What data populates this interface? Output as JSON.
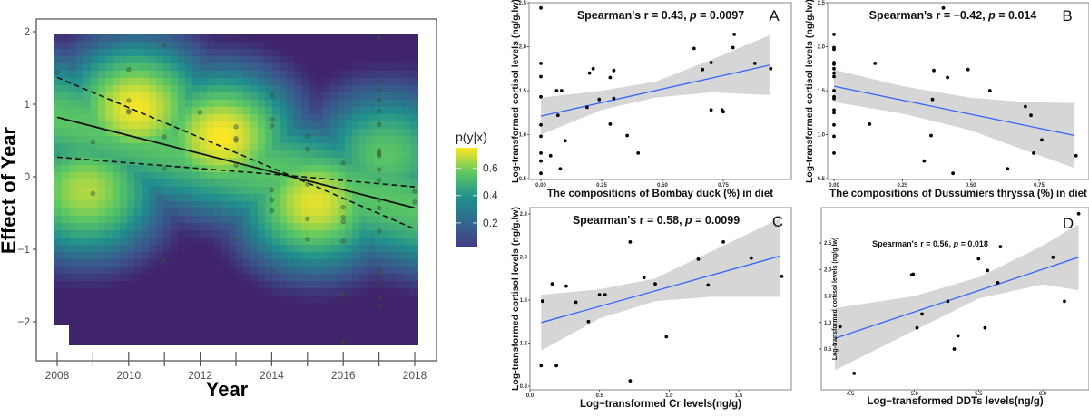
{
  "chart_data": [
    {
      "id": "effect-of-year",
      "type": "heatmap",
      "title": "",
      "xlabel": "Year",
      "ylabel": "Effect of Year",
      "xlim": [
        2007.8,
        2018.3
      ],
      "ylim": [
        -2.5,
        2.05
      ],
      "xticks": [
        2008,
        2010,
        2012,
        2014,
        2016,
        2018
      ],
      "xtick_labels": [
        "2008",
        "2010",
        "2012",
        "2014",
        "2016",
        "2018"
      ],
      "minor_xticks": [
        2009,
        2011,
        2013,
        2015,
        2017
      ],
      "yticks": [
        -2,
        -1,
        0,
        1,
        2
      ],
      "ytick_labels": [
        "−2",
        "−1",
        "0",
        "1",
        "2"
      ],
      "legend": {
        "title": "p(y|x)",
        "ticks": [
          0.2,
          0.4,
          0.6
        ],
        "tick_labels": [
          "0.2",
          "0.4",
          "0.6"
        ],
        "range": [
          0.02,
          0.75
        ],
        "position": "right"
      },
      "colormap": [
        "#440154",
        "#3b528b",
        "#21908d",
        "#5dc863",
        "#fde725"
      ],
      "heat_peaks": [
        {
          "x": 2010.2,
          "y": 0.95,
          "w": 0.74
        },
        {
          "x": 2012.6,
          "y": 0.55,
          "w": 0.75
        },
        {
          "x": 2015.2,
          "y": -0.35,
          "w": 0.72
        },
        {
          "x": 2008.8,
          "y": -0.2,
          "w": 0.66
        },
        {
          "x": 2017.2,
          "y": 0.3,
          "w": 0.55
        }
      ],
      "fit_line": {
        "x": [
          2008,
          2018
        ],
        "y": [
          0.82,
          -0.43
        ]
      },
      "ci_upper": {
        "x": [
          2008,
          2014.6,
          2018
        ],
        "y": [
          1.37,
          0.0,
          -0.72
        ]
      },
      "ci_lower": {
        "x": [
          2008,
          2014.4,
          2018
        ],
        "y": [
          0.27,
          0.02,
          -0.14
        ]
      },
      "points": [
        [
          2008,
          1.44
        ],
        [
          2009,
          0.48
        ],
        [
          2009,
          -0.23
        ],
        [
          2010,
          1.48
        ],
        [
          2010,
          1.05
        ],
        [
          2010,
          0.91
        ],
        [
          2010,
          0.89
        ],
        [
          2011,
          1.82
        ],
        [
          2011,
          0.55
        ],
        [
          2011,
          0.11
        ],
        [
          2011,
          -1.16
        ],
        [
          2012,
          0.89
        ],
        [
          2013,
          0.69
        ],
        [
          2013,
          0.53
        ],
        [
          2013,
          0.5
        ],
        [
          2013,
          0.16
        ],
        [
          2013,
          -0.86
        ],
        [
          2014,
          1.12
        ],
        [
          2014,
          0.79
        ],
        [
          2014,
          0.7
        ],
        [
          2014,
          -0.18
        ],
        [
          2014,
          -0.32
        ],
        [
          2014,
          -0.47
        ],
        [
          2014,
          -1.3
        ],
        [
          2015,
          0.56
        ],
        [
          2015,
          0.38
        ],
        [
          2015,
          -0.1
        ],
        [
          2015,
          -0.58
        ],
        [
          2015,
          -0.86
        ],
        [
          2016,
          0.19
        ],
        [
          2016,
          -0.42
        ],
        [
          2016,
          -0.56
        ],
        [
          2016,
          -0.62
        ],
        [
          2016,
          -0.89
        ],
        [
          2016,
          -1.63
        ],
        [
          2016,
          -2.28
        ],
        [
          2017,
          1.92
        ],
        [
          2017,
          1.31
        ],
        [
          2017,
          1.19
        ],
        [
          2017,
          1.05
        ],
        [
          2017,
          0.91
        ],
        [
          2017,
          0.72
        ],
        [
          2017,
          0.36
        ],
        [
          2017,
          0.32
        ],
        [
          2017,
          0.29
        ],
        [
          2017,
          0.1
        ],
        [
          2017,
          -0.05
        ],
        [
          2017,
          -0.32
        ],
        [
          2017,
          -0.43
        ],
        [
          2017,
          -0.75
        ],
        [
          2017,
          -1.27
        ],
        [
          2017,
          -1.33
        ],
        [
          2017,
          -1.47
        ],
        [
          2017,
          -1.66
        ],
        [
          2017,
          -1.78
        ],
        [
          2018,
          -0.2
        ],
        [
          2018,
          -0.35
        ]
      ]
    },
    {
      "id": "A",
      "type": "scatter",
      "panel_label": "A",
      "annotation_pre": "Spearman's r = 0.43, ",
      "annotation_p": "p",
      "annotation_post": " = 0.0097",
      "xlabel": "The compositions of Bombay duck (%) in diet",
      "ylabel": "Log-transformed cortisol levels (ng/g.lw)",
      "xlim": [
        -0.04,
        0.96
      ],
      "ylim": [
        0.48,
        2.5
      ],
      "xticks": [
        0.0,
        0.25,
        0.5,
        0.75
      ],
      "xtick_labels": [
        "0.00",
        "0.25",
        "0.50",
        "0.75"
      ],
      "yticks": [
        0.5,
        1.0,
        1.5,
        2.0,
        2.5
      ],
      "ytick_labels": [
        "0.5",
        "1.0",
        "1.5",
        "2.0",
        "2.5"
      ],
      "fit_line": {
        "x": [
          0.0,
          0.94
        ],
        "y": [
          1.21,
          1.79
        ]
      },
      "ci_band": {
        "x": [
          0.0,
          0.25,
          0.47,
          0.7,
          0.94
        ],
        "upper": [
          1.42,
          1.5,
          1.6,
          1.85,
          2.13
        ],
        "lower": [
          1.0,
          1.28,
          1.42,
          1.48,
          1.45
        ]
      },
      "points": [
        [
          0.0,
          2.44
        ],
        [
          0.0,
          1.81
        ],
        [
          0.0,
          1.66
        ],
        [
          0.0,
          1.43
        ],
        [
          0.0,
          1.11
        ],
        [
          0.0,
          0.98
        ],
        [
          0.0,
          0.79
        ],
        [
          0.0,
          0.7
        ],
        [
          0.0,
          0.56
        ],
        [
          0.04,
          0.76
        ],
        [
          0.065,
          1.5
        ],
        [
          0.07,
          1.22
        ],
        [
          0.08,
          0.61
        ],
        [
          0.085,
          1.5
        ],
        [
          0.1,
          0.93
        ],
        [
          0.19,
          1.31
        ],
        [
          0.2,
          1.7
        ],
        [
          0.215,
          1.75
        ],
        [
          0.24,
          1.4
        ],
        [
          0.285,
          1.65
        ],
        [
          0.285,
          1.12
        ],
        [
          0.3,
          1.73
        ],
        [
          0.3,
          1.41
        ],
        [
          0.355,
          0.99
        ],
        [
          0.4,
          0.79
        ],
        [
          0.63,
          1.98
        ],
        [
          0.665,
          1.74
        ],
        [
          0.7,
          1.28
        ],
        [
          0.7,
          1.82
        ],
        [
          0.745,
          1.28
        ],
        [
          0.75,
          1.26
        ],
        [
          0.79,
          1.99
        ],
        [
          0.795,
          2.14
        ],
        [
          0.88,
          1.81
        ],
        [
          0.945,
          1.75
        ]
      ]
    },
    {
      "id": "B",
      "type": "scatter",
      "panel_label": "B",
      "annotation_pre": "Spearman's r = −0.42, ",
      "annotation_p": "p",
      "annotation_post": " = 0.014",
      "xlabel": "The compositions of Dussumiers thryssa (%) in diet",
      "ylabel": "Log-transformed cortisol levels (ng/g.lw)",
      "xlim": [
        -0.04,
        0.92
      ],
      "ylim": [
        0.48,
        2.5
      ],
      "xticks": [
        0.0,
        0.25,
        0.5,
        0.75
      ],
      "xtick_labels": [
        "0.00",
        "0.25",
        "0.50",
        "0.75"
      ],
      "yticks": [
        0.5,
        1.0,
        1.5,
        2.0,
        2.5
      ],
      "ytick_labels": [
        "0.5",
        "1.0",
        "1.5",
        "2.0",
        "2.5"
      ],
      "fit_line": {
        "x": [
          0.0,
          0.88
        ],
        "y": [
          1.55,
          0.99
        ]
      },
      "ci_band": {
        "x": [
          0.0,
          0.25,
          0.5,
          0.7,
          0.88
        ],
        "upper": [
          1.74,
          1.55,
          1.42,
          1.37,
          1.36
        ],
        "lower": [
          1.37,
          1.24,
          1.05,
          0.82,
          0.62
        ]
      },
      "points": [
        [
          0.0,
          2.14
        ],
        [
          0.0,
          1.99
        ],
        [
          0.0,
          1.97
        ],
        [
          0.0,
          1.82
        ],
        [
          0.0,
          1.8
        ],
        [
          0.0,
          1.75
        ],
        [
          0.0,
          1.7
        ],
        [
          0.0,
          1.66
        ],
        [
          0.0,
          1.5
        ],
        [
          0.0,
          1.43
        ],
        [
          0.0,
          1.41
        ],
        [
          0.0,
          1.28
        ],
        [
          0.0,
          1.25
        ],
        [
          0.0,
          1.11
        ],
        [
          0.0,
          0.98
        ],
        [
          0.0,
          0.79
        ],
        [
          0.13,
          1.12
        ],
        [
          0.15,
          1.81
        ],
        [
          0.33,
          0.7
        ],
        [
          0.355,
          0.99
        ],
        [
          0.36,
          1.4
        ],
        [
          0.365,
          1.73
        ],
        [
          0.4,
          2.44
        ],
        [
          0.415,
          1.65
        ],
        [
          0.435,
          0.56
        ],
        [
          0.49,
          1.74
        ],
        [
          0.57,
          1.5
        ],
        [
          0.635,
          0.61
        ],
        [
          0.7,
          1.32
        ],
        [
          0.72,
          1.22
        ],
        [
          0.73,
          0.79
        ],
        [
          0.76,
          0.94
        ],
        [
          0.885,
          0.76
        ]
      ]
    },
    {
      "id": "C",
      "type": "scatter",
      "panel_label": "C",
      "annotation_pre": "Spearman's r = 0.58, ",
      "annotation_p": "p",
      "annotation_post": " = 0.0099",
      "xlabel": "Log−transformed Cr levels(ng/g)",
      "ylabel": "Log-transformed cortisol levels (ng/g.lw)",
      "xlim": [
        0.0,
        1.86
      ],
      "ylim": [
        0.78,
        2.42
      ],
      "xticks": [
        0.0,
        0.5,
        1.0,
        1.5
      ],
      "xtick_labels": [
        "0.0",
        "0.5",
        "1.0",
        "1.5"
      ],
      "yticks": [
        0.8,
        1.2,
        1.6,
        2.0,
        2.4
      ],
      "ytick_labels": [
        "0.8",
        "1.2",
        "1.6",
        "2.0",
        "2.4"
      ],
      "fit_line": {
        "x": [
          0.08,
          1.8
        ],
        "y": [
          1.39,
          2.01
        ]
      },
      "ci_band": {
        "x": [
          0.08,
          0.5,
          0.9,
          1.3,
          1.8
        ],
        "upper": [
          1.65,
          1.7,
          1.8,
          2.05,
          2.36
        ],
        "lower": [
          1.13,
          1.43,
          1.59,
          1.63,
          1.63
        ]
      },
      "points": [
        [
          0.08,
          0.99
        ],
        [
          0.09,
          1.59
        ],
        [
          0.16,
          1.75
        ],
        [
          0.19,
          0.99
        ],
        [
          0.26,
          1.73
        ],
        [
          0.33,
          1.58
        ],
        [
          0.42,
          1.4
        ],
        [
          0.5,
          1.65
        ],
        [
          0.54,
          1.65
        ],
        [
          0.72,
          2.14
        ],
        [
          0.72,
          0.85
        ],
        [
          0.82,
          1.81
        ],
        [
          0.9,
          1.75
        ],
        [
          0.98,
          1.26
        ],
        [
          1.21,
          1.98
        ],
        [
          1.28,
          1.74
        ],
        [
          1.39,
          2.14
        ],
        [
          1.59,
          1.99
        ],
        [
          1.81,
          1.82
        ]
      ]
    },
    {
      "id": "D",
      "type": "scatter",
      "panel_label": "D",
      "annotation_pre": "Spearman's r = 0.56, ",
      "annotation_p": "p",
      "annotation_post": " = 0.018",
      "xlabel": "Log−transformed DDTs levels(ng/g)",
      "ylabel": "Log-transformed cortisol levels (ng/g.lw)",
      "xlim": [
        4.35,
        6.3
      ],
      "ylim": [
        -0.15,
        3.2
      ],
      "xticks": [
        4.5,
        5.0,
        5.5,
        6.0
      ],
      "xtick_labels": [
        "4.5",
        "5.0",
        "5.5",
        "6.0"
      ],
      "yticks": [
        0.5,
        1.0,
        1.5,
        2.0,
        2.5
      ],
      "ytick_labels": [
        "0.5",
        "1.0",
        "1.5",
        "2.0",
        "2.5"
      ],
      "fit_line": {
        "x": [
          4.38,
          6.28
        ],
        "y": [
          0.7,
          2.23
        ]
      },
      "ci_band": {
        "x": [
          4.38,
          5.0,
          5.5,
          6.0,
          6.28
        ],
        "upper": [
          1.27,
          1.5,
          1.85,
          2.45,
          2.85
        ],
        "lower": [
          0.1,
          0.85,
          1.45,
          1.72,
          1.61
        ]
      },
      "points": [
        [
          4.42,
          0.92
        ],
        [
          4.53,
          0.04
        ],
        [
          4.98,
          1.9
        ],
        [
          4.99,
          1.91
        ],
        [
          5.02,
          0.9
        ],
        [
          5.06,
          1.16
        ],
        [
          5.26,
          1.4
        ],
        [
          5.31,
          0.5
        ],
        [
          5.34,
          0.75
        ],
        [
          5.5,
          2.2
        ],
        [
          5.55,
          0.9
        ],
        [
          5.57,
          1.98
        ],
        [
          5.65,
          1.75
        ],
        [
          5.67,
          2.43
        ],
        [
          6.08,
          2.23
        ],
        [
          6.17,
          1.4
        ],
        [
          6.28,
          3.05
        ]
      ]
    }
  ]
}
